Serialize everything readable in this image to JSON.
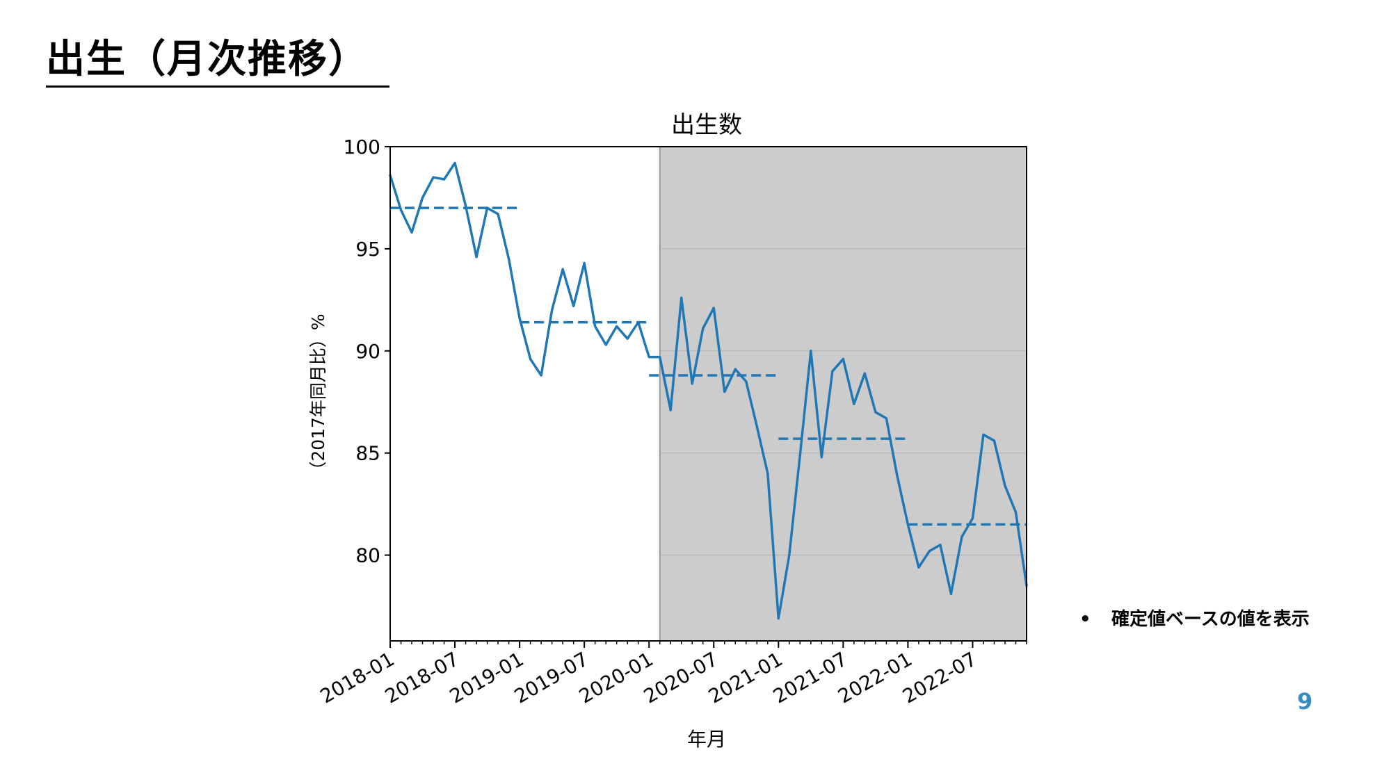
{
  "slide": {
    "title": "出生（月次推移）",
    "note": "確定値ベースの値を表示",
    "note_bullet": "•",
    "page_number": "9"
  },
  "colors": {
    "line": "#1f77b4",
    "shade": "#cccccc",
    "grid": "#b0b0b0",
    "page_number": "#3a8dc1"
  },
  "chart_data": {
    "type": "line",
    "title": "出生数",
    "xlabel": "年月",
    "ylabel": "（2017年同月比）%",
    "ylim": [
      75.8,
      100
    ],
    "yticks": [
      80,
      85,
      90,
      95,
      100
    ],
    "x_range": [
      "2018-01",
      "2022-12"
    ],
    "xtick_labels": [
      "2018-01",
      "2018-07",
      "2019-01",
      "2019-07",
      "2020-01",
      "2020-07",
      "2021-01",
      "2021-07",
      "2022-01",
      "2022-07"
    ],
    "grid": "horizontal, shaded region only",
    "shaded_region": [
      "2020-02",
      "2022-12"
    ],
    "series": [
      {
        "style": "solid",
        "x": [
          "2018-01",
          "2018-02",
          "2018-03",
          "2018-04",
          "2018-05",
          "2018-06",
          "2018-07",
          "2018-08",
          "2018-09",
          "2018-10",
          "2018-11",
          "2018-12",
          "2019-01",
          "2019-02",
          "2019-03",
          "2019-04",
          "2019-05",
          "2019-06",
          "2019-07",
          "2019-08",
          "2019-09",
          "2019-10",
          "2019-11",
          "2019-12",
          "2020-01",
          "2020-02",
          "2020-03",
          "2020-04",
          "2020-05",
          "2020-06",
          "2020-07",
          "2020-08",
          "2020-09",
          "2020-10",
          "2020-11",
          "2020-12",
          "2021-01",
          "2021-02",
          "2021-03",
          "2021-04",
          "2021-05",
          "2021-06",
          "2021-07",
          "2021-08",
          "2021-09",
          "2021-10",
          "2021-11",
          "2021-12",
          "2022-01",
          "2022-02",
          "2022-03",
          "2022-04",
          "2022-05",
          "2022-06",
          "2022-07",
          "2022-08",
          "2022-09",
          "2022-10",
          "2022-11",
          "2022-12"
        ],
        "values": [
          98.6,
          96.9,
          95.8,
          97.5,
          98.5,
          98.4,
          99.2,
          97.1,
          94.6,
          97.0,
          96.7,
          94.5,
          91.6,
          89.6,
          88.8,
          92.0,
          94.0,
          92.2,
          94.3,
          91.2,
          90.3,
          91.2,
          90.6,
          91.4,
          89.7,
          89.7,
          87.1,
          92.6,
          88.4,
          91.1,
          92.1,
          88.0,
          89.1,
          88.5,
          86.3,
          84.0,
          76.9,
          80.0,
          84.9,
          90.0,
          84.8,
          89.0,
          89.6,
          87.4,
          88.9,
          87.0,
          86.7,
          83.9,
          81.5,
          79.4,
          80.2,
          80.5,
          78.1,
          80.9,
          81.8,
          85.9,
          85.6,
          83.4,
          82.1,
          78.5
        ]
      },
      {
        "style": "dashed",
        "segments": [
          {
            "x": [
              "2018-01",
              "2019-01"
            ],
            "value": 97.0
          },
          {
            "x": [
              "2019-01",
              "2020-01"
            ],
            "value": 91.4
          },
          {
            "x": [
              "2020-01",
              "2021-01"
            ],
            "value": 88.8
          },
          {
            "x": [
              "2021-01",
              "2022-01"
            ],
            "value": 85.7
          },
          {
            "x": [
              "2022-01",
              "2022-12"
            ],
            "value": 81.5
          }
        ]
      }
    ]
  }
}
